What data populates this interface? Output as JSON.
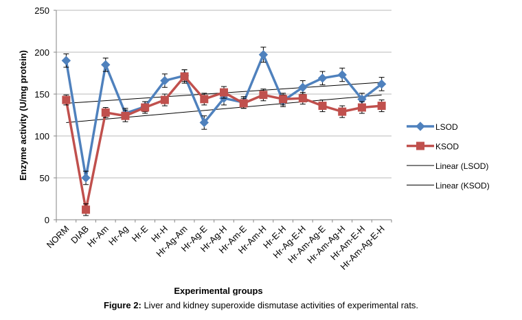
{
  "chart_data": {
    "type": "line",
    "xlabel": "Experimental groups",
    "ylabel": "Enzyme activity (U/mg protein)",
    "ylim": [
      0,
      250
    ],
    "yticks": [
      0,
      50,
      100,
      150,
      200,
      250
    ],
    "grid": "horizontal",
    "legend_position": "right",
    "categories": [
      "NORM",
      "DIAB",
      "Hr-Am",
      "Hr-Ag",
      "Hr-E",
      "Hr-H",
      "Hr-Ag-Am",
      "Hr-Ag-E",
      "Hr-Ag-H",
      "Hr-Am-E",
      "Hr-Am-H",
      "Hr-E-H",
      "Hr-Ag-E-H",
      "Hr-Am-Ag-E",
      "Hr-Am-Ag-H",
      "Hr-Am-E-H",
      "Hr-Am-Ag-E-H"
    ],
    "series": [
      {
        "name": "LSOD",
        "color": "#4f81bd",
        "marker": "diamond",
        "values": [
          190,
          50,
          185,
          127,
          135,
          166,
          172,
          116,
          145,
          140,
          197,
          142,
          158,
          169,
          173,
          144,
          162
        ],
        "errors": [
          8,
          8,
          8,
          6,
          6,
          8,
          7,
          8,
          8,
          7,
          9,
          7,
          8,
          8,
          8,
          7,
          8
        ]
      },
      {
        "name": "KSOD",
        "color": "#c0504d",
        "marker": "square",
        "values": [
          143,
          12,
          128,
          124,
          134,
          143,
          171,
          144,
          152,
          139,
          149,
          144,
          145,
          136,
          129,
          134,
          136
        ],
        "errors": [
          6,
          7,
          6,
          7,
          7,
          7,
          8,
          7,
          7,
          6,
          7,
          7,
          7,
          7,
          7,
          7,
          7
        ]
      }
    ],
    "trendlines": [
      {
        "name": "Linear (LSOD)",
        "color": "#000000",
        "start": 139,
        "end": 164
      },
      {
        "name": "Linear (KSOD)",
        "color": "#000000",
        "start": 116,
        "end": 149
      }
    ]
  },
  "caption": {
    "label": "Figure 2:",
    "text": " Liver and kidney superoxide dismutase activities of experimental rats."
  }
}
